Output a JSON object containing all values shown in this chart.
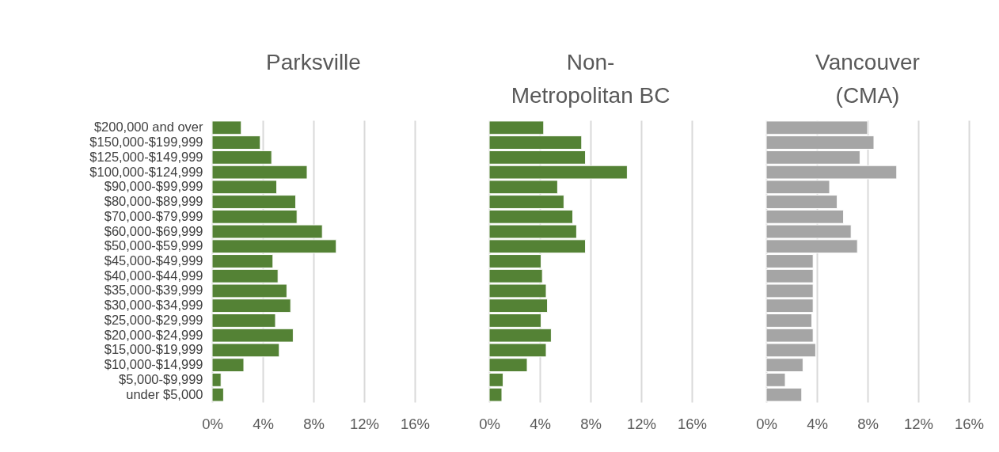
{
  "chart_data": [
    {
      "type": "bar",
      "orientation": "horizontal",
      "title": "Parksville",
      "categories": [
        "$200,000 and over",
        "$150,000-$199,999",
        "$125,000-$149,999",
        "$100,000-$124,999",
        "$90,000-$99,999",
        "$80,000-$89,999",
        "$70,000-$79,999",
        "$60,000-$69,999",
        "$50,000-$59,999",
        "$45,000-$49,999",
        "$40,000-$44,999",
        "$35,000-$39,999",
        "$30,000-$34,999",
        "$25,000-$29,999",
        "$20,000-$24,999",
        "$15,000-$19,999",
        "$10,000-$14,999",
        "$5,000-$9,999",
        "under $5,000"
      ],
      "values": [
        2.3,
        3.8,
        4.7,
        7.5,
        5.1,
        6.6,
        6.7,
        8.7,
        9.8,
        4.8,
        5.2,
        5.9,
        6.2,
        5.0,
        6.4,
        5.3,
        2.5,
        0.7,
        0.9
      ],
      "color": "#548235",
      "xlim": [
        0,
        16
      ],
      "xticks": [
        {
          "value": 0,
          "label": "0%"
        },
        {
          "value": 4,
          "label": "4%"
        },
        {
          "value": 8,
          "label": "8%"
        },
        {
          "value": 12,
          "label": "12%"
        },
        {
          "value": 16,
          "label": "16%"
        }
      ],
      "grid": "x"
    },
    {
      "type": "bar",
      "orientation": "horizontal",
      "title": "Non-Metropolitan BC",
      "categories": [
        null,
        null,
        null,
        null,
        null,
        null,
        null,
        null,
        null,
        null,
        null,
        null,
        null,
        null,
        null,
        null,
        null,
        null,
        null
      ],
      "values": [
        4.3,
        7.3,
        7.6,
        10.9,
        5.4,
        5.9,
        6.6,
        6.9,
        7.6,
        4.1,
        4.2,
        4.5,
        4.6,
        4.1,
        4.9,
        4.5,
        3.0,
        1.1,
        1.0
      ],
      "color": "#548235",
      "xlim": [
        0,
        16
      ],
      "xticks": [
        {
          "value": 0,
          "label": "0%"
        },
        {
          "value": 4,
          "label": "4%"
        },
        {
          "value": 8,
          "label": "8%"
        },
        {
          "value": 12,
          "label": "12%"
        },
        {
          "value": 16,
          "label": "16%"
        }
      ],
      "grid": "x",
      "tick_labels": "x"
    },
    {
      "type": "bar",
      "orientation": "horizontal",
      "title": "Vancouver (CMA)",
      "categories": [
        null,
        null,
        null,
        null,
        null,
        null,
        null,
        null,
        null,
        null,
        null,
        null,
        null,
        null,
        null,
        null,
        null,
        null,
        null
      ],
      "values": [
        8.0,
        8.5,
        7.4,
        10.3,
        5.0,
        5.6,
        6.1,
        6.7,
        7.2,
        3.7,
        3.7,
        3.7,
        3.7,
        3.6,
        3.7,
        3.9,
        2.9,
        1.5,
        2.8
      ],
      "color": "#a5a5a5",
      "xlim": [
        0,
        16
      ],
      "xticks": [
        {
          "value": 0,
          "label": "0%"
        },
        {
          "value": 4,
          "label": "4%"
        },
        {
          "value": 8,
          "label": "8%"
        },
        {
          "value": 12,
          "label": "12%"
        },
        {
          "value": 16,
          "label": "16%"
        }
      ],
      "grid": "x",
      "tick_labels": "x"
    }
  ]
}
